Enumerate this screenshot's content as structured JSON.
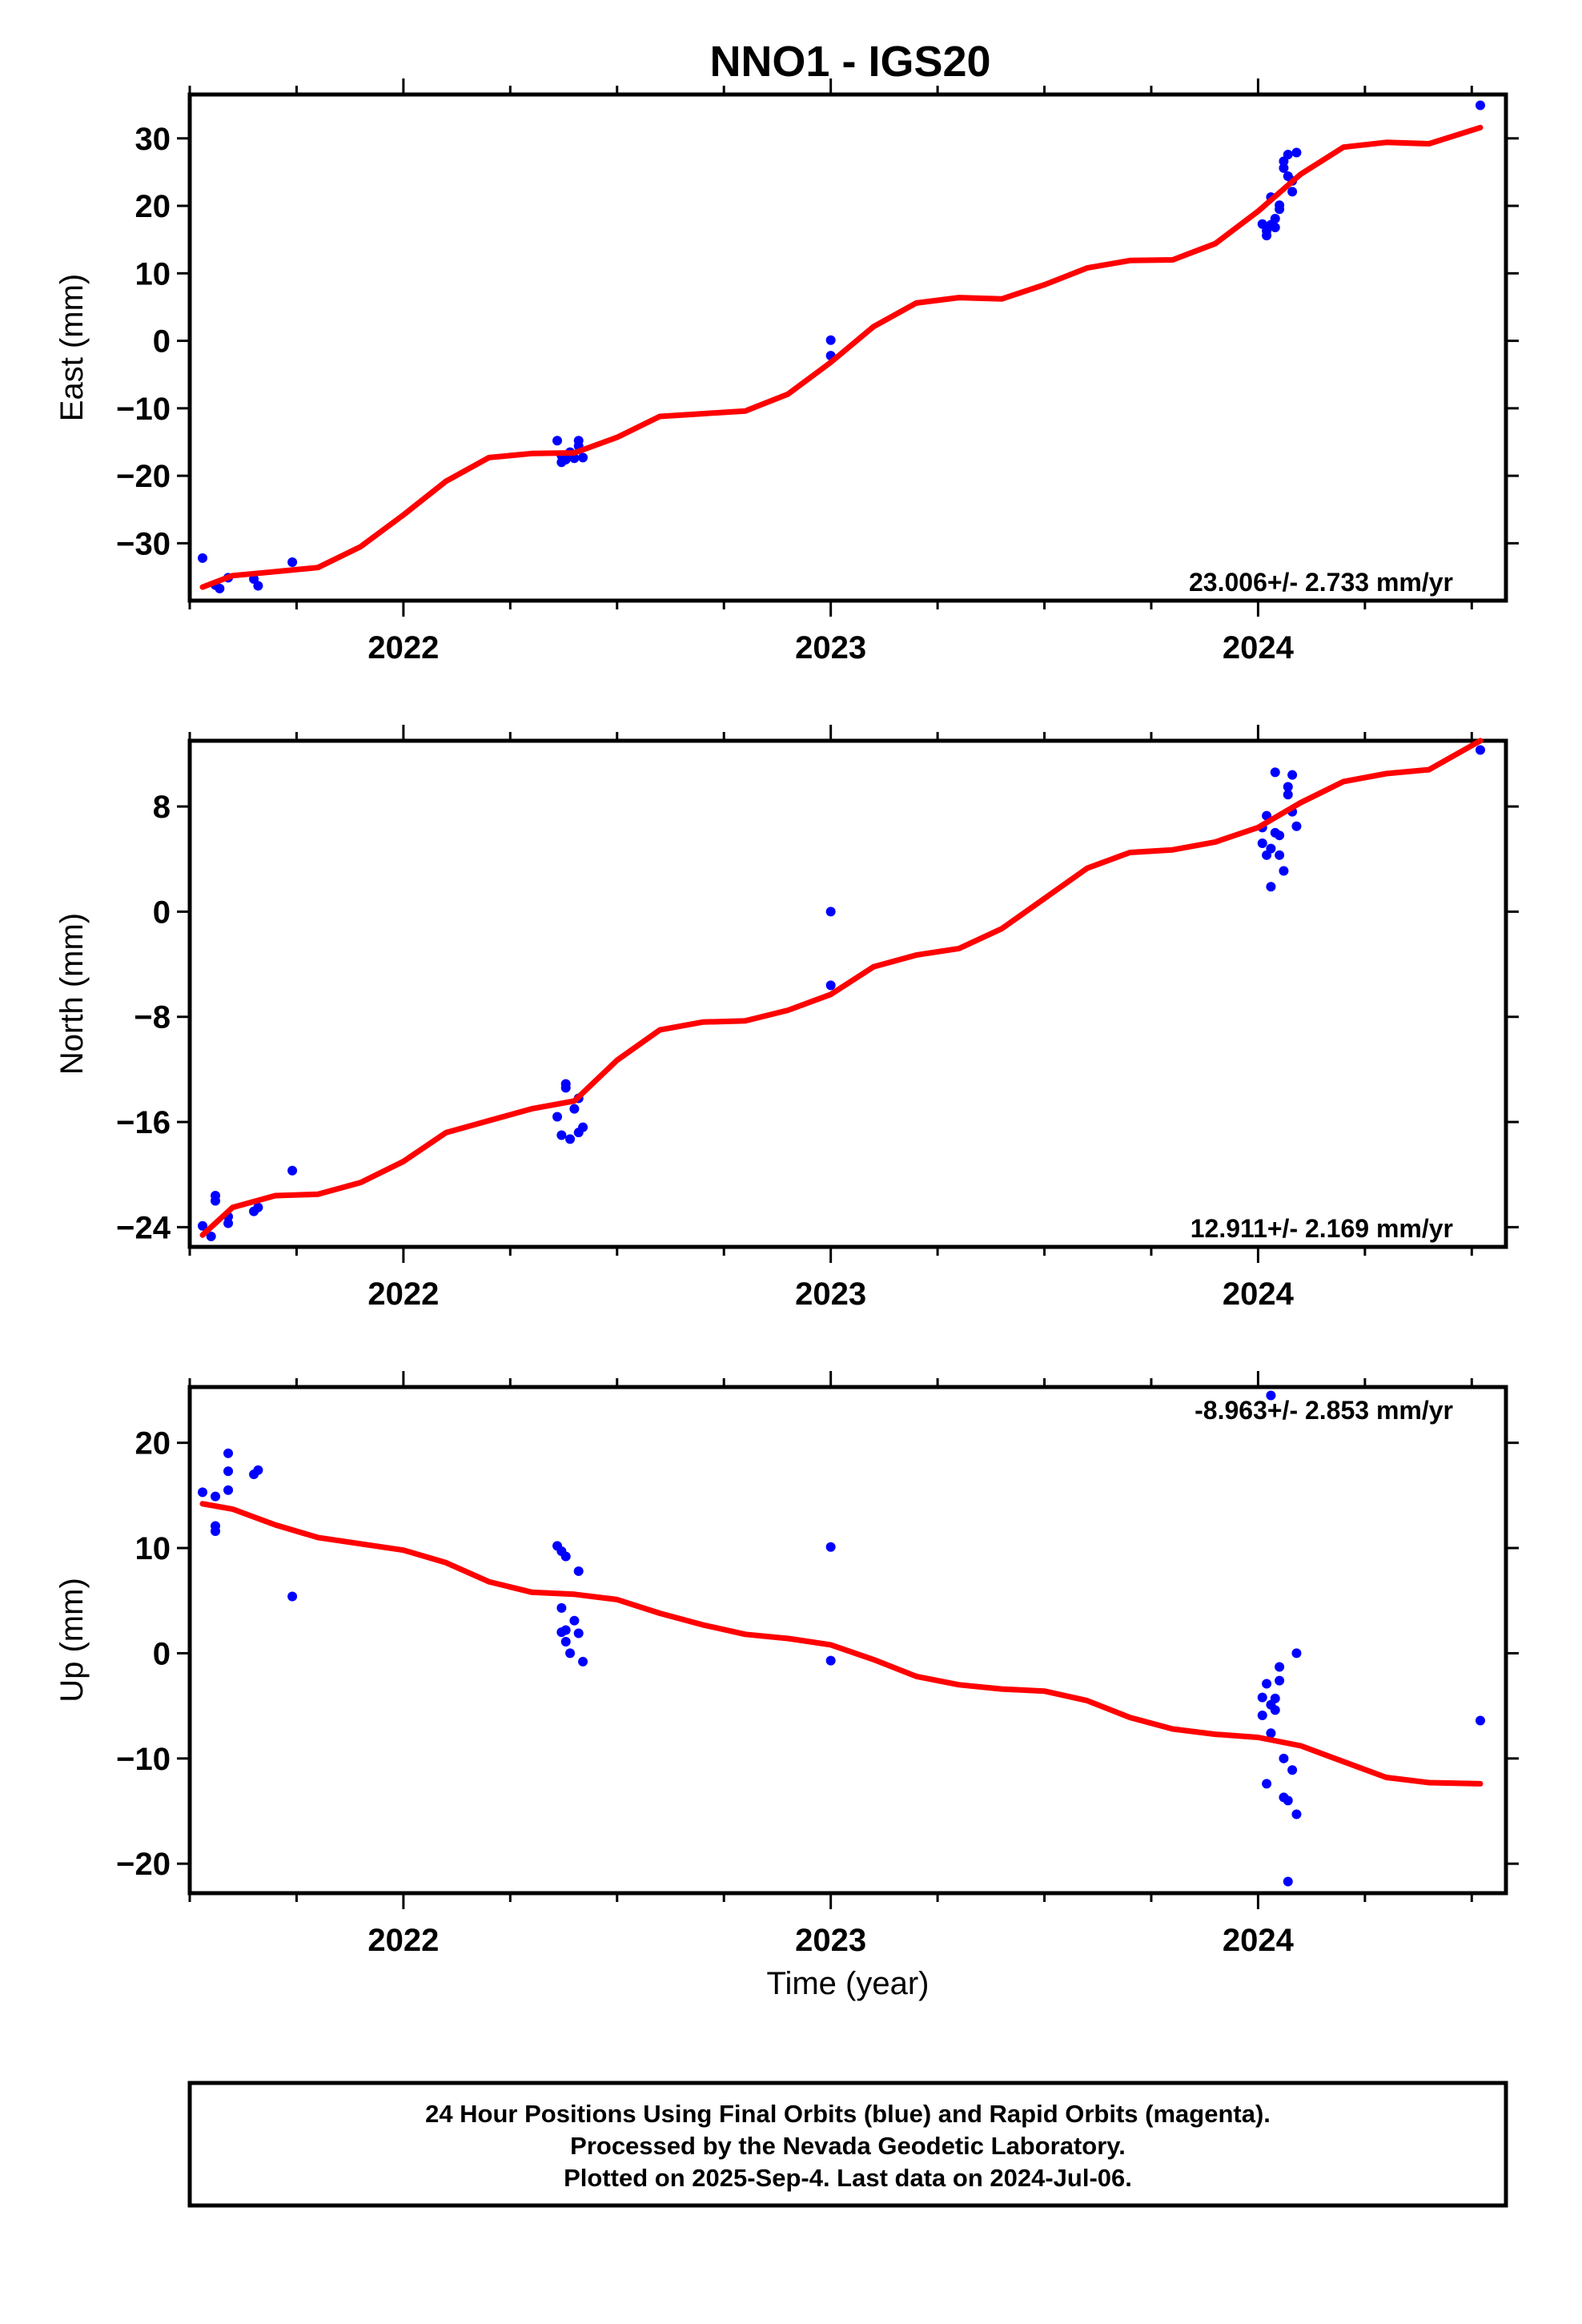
{
  "title": "NNO1 - IGS20",
  "colors": {
    "final_orbits": "#0000ff",
    "rapid_orbits": "#ff00ff",
    "model": "#ff0000",
    "frame": "#000000"
  },
  "chart_data": [
    {
      "type": "scatter",
      "panel": "east",
      "ylabel": "East (mm)",
      "xlabel": "",
      "xlim": [
        2021.5,
        2024.58
      ],
      "ylim": [
        -38.5,
        36.5
      ],
      "yticks": [
        30,
        20,
        10,
        0,
        -10,
        -20,
        -30
      ],
      "ytick_labels": [
        "30",
        "20",
        "10",
        "0",
        "−10",
        "−20",
        "−30"
      ],
      "xticks": [
        2022,
        2023,
        2024
      ],
      "xtick_labels": [
        "2022",
        "2023",
        "2024"
      ],
      "rate_text": "23.006+/- 2.733 mm/yr",
      "rate_position": "bottom-right",
      "series": [
        {
          "type": "scatter",
          "x": [
            2021.53,
            2021.56,
            2021.57,
            2021.59,
            2021.65,
            2021.66,
            2021.74,
            2022.36,
            2022.37,
            2022.37,
            2022.38,
            2022.39,
            2022.4,
            2022.41,
            2022.41,
            2022.42,
            2023.0,
            2023.0,
            2024.01,
            2024.02,
            2024.02,
            2024.03,
            2024.03,
            2024.04,
            2024.04,
            2024.05,
            2024.05,
            2024.06,
            2024.06,
            2024.07,
            2024.07,
            2024.08,
            2024.08,
            2024.09,
            2024.52
          ],
          "y": [
            -32.2,
            -36.2,
            -36.7,
            -35.1,
            -35.3,
            -36.3,
            -32.8,
            -14.8,
            -17.0,
            -18.0,
            -17.6,
            -16.5,
            -17.4,
            -14.8,
            -15.6,
            -17.3,
            0.1,
            -2.2,
            17.3,
            15.6,
            16.3,
            17.2,
            21.3,
            18.1,
            16.8,
            19.5,
            20.1,
            26.6,
            25.6,
            27.6,
            24.4,
            23.7,
            22.1,
            27.9,
            34.9
          ]
        },
        {
          "type": "line",
          "x": [
            2021.53,
            2021.6,
            2021.7,
            2021.8,
            2021.9,
            2022.0,
            2022.1,
            2022.2,
            2022.3,
            2022.4,
            2022.5,
            2022.6,
            2022.7,
            2022.8,
            2022.9,
            2023.0,
            2023.1,
            2023.2,
            2023.3,
            2023.4,
            2023.5,
            2023.6,
            2023.7,
            2023.8,
            2023.9,
            2024.0,
            2024.1,
            2024.2,
            2024.3,
            2024.4,
            2024.52
          ],
          "y": [
            -36.5,
            -34.8,
            -34.2,
            -33.6,
            -30.5,
            -25.8,
            -20.8,
            -17.3,
            -16.7,
            -16.6,
            -14.3,
            -11.2,
            -10.8,
            -10.4,
            -7.9,
            -3.2,
            2.1,
            5.6,
            6.4,
            6.2,
            8.3,
            10.8,
            11.9,
            12.0,
            14.4,
            19.2,
            24.7,
            28.7,
            29.4,
            29.2,
            31.6
          ]
        }
      ]
    },
    {
      "type": "scatter",
      "panel": "north",
      "ylabel": "North (mm)",
      "xlabel": "",
      "xlim": [
        2021.5,
        2024.58
      ],
      "ylim": [
        -25.5,
        13.0
      ],
      "yticks": [
        8,
        0,
        -8,
        -16,
        -24
      ],
      "ytick_labels": [
        "8",
        "0",
        "−8",
        "−16",
        "−24"
      ],
      "xticks": [
        2022,
        2023,
        2024
      ],
      "xtick_labels": [
        "2022",
        "2023",
        "2024"
      ],
      "rate_text": "12.911+/- 2.169 mm/yr",
      "rate_position": "bottom-right",
      "series": [
        {
          "type": "scatter",
          "x": [
            2021.53,
            2021.55,
            2021.56,
            2021.56,
            2021.59,
            2021.59,
            2021.65,
            2021.66,
            2021.74,
            2022.36,
            2022.37,
            2022.38,
            2022.38,
            2022.39,
            2022.4,
            2022.41,
            2022.41,
            2022.42,
            2023.0,
            2023.0,
            2024.01,
            2024.01,
            2024.02,
            2024.02,
            2024.03,
            2024.03,
            2024.04,
            2024.04,
            2024.05,
            2024.05,
            2024.06,
            2024.07,
            2024.07,
            2024.08,
            2024.08,
            2024.09,
            2024.52
          ],
          "y": [
            -23.9,
            -24.7,
            -21.6,
            -22.0,
            -23.2,
            -23.7,
            -22.8,
            -22.5,
            -19.7,
            -15.6,
            -17.0,
            -13.1,
            -13.4,
            -17.3,
            -15.0,
            -16.8,
            -14.2,
            -16.4,
            0.0,
            -5.6,
            5.2,
            6.4,
            7.3,
            4.3,
            1.9,
            4.8,
            10.6,
            6.0,
            5.8,
            4.3,
            3.1,
            8.9,
            9.5,
            7.6,
            10.4,
            6.5,
            12.3
          ]
        },
        {
          "type": "line",
          "x": [
            2021.53,
            2021.6,
            2021.7,
            2021.8,
            2021.9,
            2022.0,
            2022.1,
            2022.2,
            2022.3,
            2022.4,
            2022.5,
            2022.6,
            2022.7,
            2022.8,
            2022.9,
            2023.0,
            2023.1,
            2023.2,
            2023.3,
            2023.4,
            2023.5,
            2023.6,
            2023.7,
            2023.8,
            2023.9,
            2024.0,
            2024.1,
            2024.2,
            2024.3,
            2024.4,
            2024.52
          ],
          "y": [
            -24.6,
            -22.5,
            -21.6,
            -21.5,
            -20.6,
            -19.0,
            -16.8,
            -15.9,
            -15.0,
            -14.4,
            -11.3,
            -9.0,
            -8.4,
            -8.3,
            -7.5,
            -6.3,
            -4.2,
            -3.3,
            -2.8,
            -1.3,
            1.0,
            3.3,
            4.5,
            4.7,
            5.3,
            6.4,
            8.3,
            9.9,
            10.5,
            10.8,
            13.0
          ]
        }
      ]
    },
    {
      "type": "scatter",
      "panel": "up",
      "ylabel": "Up (mm)",
      "xlabel": "Time (year)",
      "xlim": [
        2021.5,
        2024.58
      ],
      "ylim": [
        -22.8,
        25.3
      ],
      "yticks": [
        20,
        10,
        0,
        -10,
        -20
      ],
      "ytick_labels": [
        "20",
        "10",
        "0",
        "−10",
        "−20"
      ],
      "xticks": [
        2022,
        2023,
        2024
      ],
      "xtick_labels": [
        "2022",
        "2023",
        "2024"
      ],
      "rate_text": "-8.963+/- 2.853 mm/yr",
      "rate_position": "top-right",
      "series": [
        {
          "type": "scatter",
          "x": [
            2021.53,
            2021.56,
            2021.56,
            2021.56,
            2021.59,
            2021.59,
            2021.59,
            2021.65,
            2021.66,
            2021.74,
            2022.36,
            2022.37,
            2022.37,
            2022.37,
            2022.38,
            2022.38,
            2022.38,
            2022.39,
            2022.4,
            2022.41,
            2022.41,
            2022.42,
            2023.0,
            2023.0,
            2024.01,
            2024.01,
            2024.02,
            2024.02,
            2024.03,
            2024.03,
            2024.03,
            2024.04,
            2024.04,
            2024.05,
            2024.05,
            2024.06,
            2024.06,
            2024.07,
            2024.07,
            2024.08,
            2024.09,
            2024.09,
            2024.52
          ],
          "y": [
            15.3,
            12.1,
            11.6,
            14.9,
            15.5,
            17.3,
            19.0,
            17.0,
            17.4,
            5.4,
            10.2,
            4.3,
            2.0,
            9.7,
            9.2,
            2.2,
            1.1,
            0.0,
            3.1,
            1.9,
            7.8,
            -0.8,
            10.1,
            -0.7,
            -4.2,
            -5.9,
            -2.9,
            -12.4,
            -4.9,
            -7.6,
            24.5,
            -5.4,
            -4.3,
            -1.3,
            -2.6,
            -13.7,
            -10.0,
            -21.7,
            -14.0,
            -11.1,
            -15.3,
            0.0,
            -6.4
          ]
        },
        {
          "type": "line",
          "x": [
            2021.53,
            2021.6,
            2021.7,
            2021.8,
            2021.9,
            2022.0,
            2022.1,
            2022.2,
            2022.3,
            2022.4,
            2022.5,
            2022.6,
            2022.7,
            2022.8,
            2022.9,
            2023.0,
            2023.1,
            2023.2,
            2023.3,
            2023.4,
            2023.5,
            2023.6,
            2023.7,
            2023.8,
            2023.9,
            2024.0,
            2024.1,
            2024.2,
            2024.3,
            2024.4,
            2024.52
          ],
          "y": [
            14.2,
            13.7,
            12.2,
            11.0,
            10.4,
            9.8,
            8.6,
            6.8,
            5.8,
            5.6,
            5.1,
            3.8,
            2.7,
            1.8,
            1.4,
            0.8,
            -0.6,
            -2.2,
            -3.0,
            -3.4,
            -3.6,
            -4.5,
            -6.1,
            -7.2,
            -7.7,
            -8.0,
            -8.8,
            -10.3,
            -11.8,
            -12.3,
            -12.4
          ]
        }
      ]
    }
  ],
  "footer": {
    "line1": "24 Hour Positions Using Final Orbits (blue) and Rapid Orbits (magenta).",
    "line2": "Processed by the Nevada Geodetic Laboratory.",
    "line3": "Plotted on 2025-Sep-4. Last data on 2024-Jul-06."
  }
}
